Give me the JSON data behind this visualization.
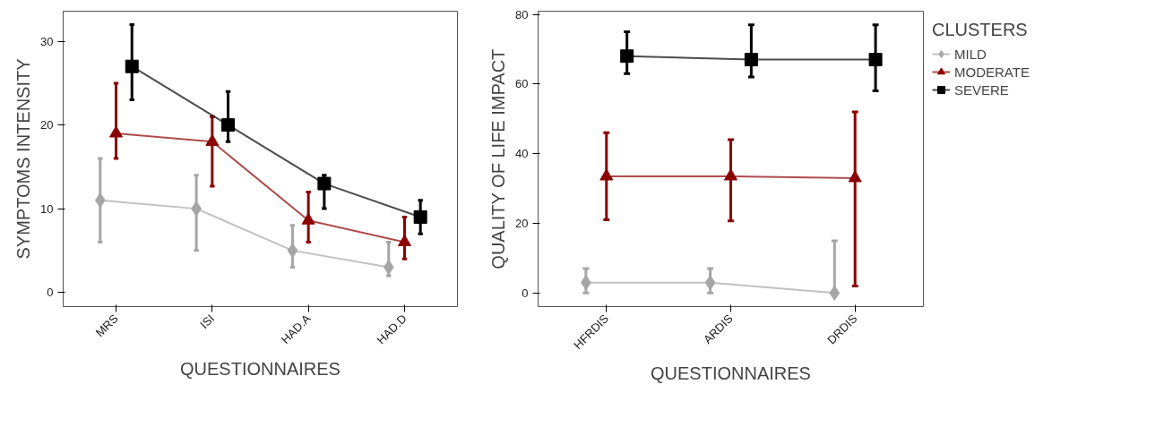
{
  "chart_data": [
    {
      "type": "line",
      "xlabel": "QUESTIONNAIRES",
      "ylabel": "SYMPTOMS INTENSITY",
      "categories": [
        "MRS",
        "ISI",
        "HAD.A",
        "HAD.D"
      ],
      "ylim": [
        -1.7,
        33.6
      ],
      "yticks": [
        0,
        10,
        20,
        30
      ],
      "grid": false,
      "legend": false,
      "series": [
        {
          "color": "#a6a6a6",
          "marker": "diamond",
          "values": [
            11,
            10,
            5,
            3
          ],
          "errors": [
            [
              6,
              16
            ],
            [
              5,
              14
            ],
            [
              3,
              8
            ],
            [
              2,
              6
            ]
          ]
        },
        {
          "color": "#8b0000",
          "marker": "triangle",
          "values": [
            19,
            18,
            8.6,
            6
          ],
          "errors": [
            [
              16,
              25
            ],
            [
              12.7,
              21
            ],
            [
              6,
              12
            ],
            [
              4,
              9
            ]
          ]
        },
        {
          "color": "#000000",
          "marker": "square",
          "values": [
            27,
            20,
            13,
            9
          ],
          "errors": [
            [
              23,
              32
            ],
            [
              18,
              24
            ],
            [
              10,
              14
            ],
            [
              7,
              11
            ]
          ]
        }
      ]
    },
    {
      "type": "line",
      "xlabel": "QUESTIONNAIRES",
      "ylabel": "QUALITY OF LIFE IMPACT",
      "legend_title": "CLUSTERS",
      "categories": [
        "HFRDIS",
        "ARDIS",
        "DRDIS"
      ],
      "ylim": [
        -3.9,
        80.9
      ],
      "yticks": [
        0,
        20,
        40,
        60,
        80
      ],
      "grid": false,
      "legend": "right",
      "series": [
        {
          "name": "MILD",
          "color": "#a6a6a6",
          "marker": "diamond",
          "values": [
            3,
            3,
            0
          ],
          "errors": [
            [
              0,
              7
            ],
            [
              0,
              7
            ],
            [
              0,
              15
            ]
          ]
        },
        {
          "name": "MODERATE",
          "color": "#8b0000",
          "marker": "triangle",
          "values": [
            33.5,
            33.5,
            33
          ],
          "errors": [
            [
              21,
              46
            ],
            [
              20.7,
              44
            ],
            [
              2,
              52
            ]
          ]
        },
        {
          "name": "SEVERE",
          "color": "#000000",
          "marker": "square",
          "values": [
            68,
            67,
            67
          ],
          "errors": [
            [
              63,
              75
            ],
            [
              62,
              77
            ],
            [
              58,
              77
            ]
          ]
        }
      ]
    }
  ]
}
